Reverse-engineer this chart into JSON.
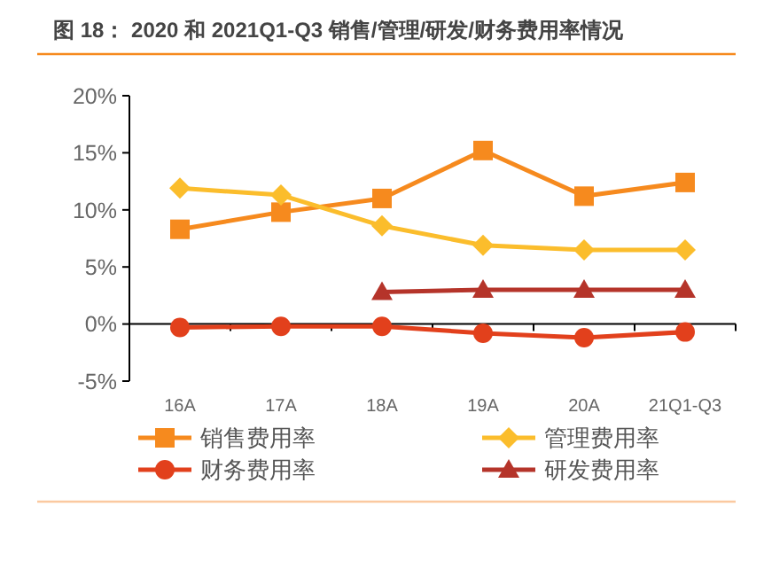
{
  "chart_data": {
    "type": "line",
    "title": "图 18：  2020 和 2021Q1-Q3 销售/管理/研发/财务费用率情况",
    "categories": [
      "16A",
      "17A",
      "18A",
      "19A",
      "20A",
      "21Q1-Q3"
    ],
    "series": [
      {
        "name": "销售费用率",
        "color": "#f68a1e",
        "marker": "square",
        "values": [
          8.3,
          9.8,
          11.0,
          15.2,
          11.2,
          12.4
        ]
      },
      {
        "name": "管理费用率",
        "color": "#fbbd2c",
        "marker": "diamond",
        "values": [
          11.9,
          11.3,
          8.6,
          6.9,
          6.5,
          6.5
        ]
      },
      {
        "name": "财务费用率",
        "color": "#e2401c",
        "marker": "circle",
        "values": [
          -0.3,
          -0.2,
          -0.2,
          -0.8,
          -1.2,
          -0.7
        ]
      },
      {
        "name": "研发费用率",
        "color": "#b5342a",
        "marker": "triangle",
        "values": [
          null,
          null,
          2.8,
          3.0,
          3.0,
          3.0
        ]
      }
    ],
    "ylim": [
      -5,
      20
    ],
    "yticks": [
      {
        "value": -5,
        "label": "-5%"
      },
      {
        "value": 0,
        "label": "0%"
      },
      {
        "value": 5,
        "label": "5%"
      },
      {
        "value": 10,
        "label": "10%"
      },
      {
        "value": 15,
        "label": "15%"
      },
      {
        "value": 20,
        "label": "20%"
      }
    ],
    "legend": "bottom",
    "line_style": "solid"
  }
}
